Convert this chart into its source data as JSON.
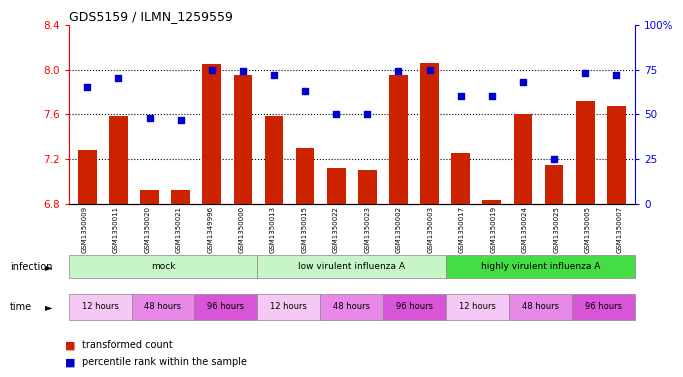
{
  "title": "GDS5159 / ILMN_1259559",
  "samples": [
    "GSM1350009",
    "GSM1350011",
    "GSM1350020",
    "GSM1350021",
    "GSM1349996",
    "GSM1350000",
    "GSM1350013",
    "GSM1350015",
    "GSM1350022",
    "GSM1350023",
    "GSM1350002",
    "GSM1350003",
    "GSM1350017",
    "GSM1350019",
    "GSM1350024",
    "GSM1350025",
    "GSM1350005",
    "GSM1350007"
  ],
  "red_values": [
    7.28,
    7.58,
    6.92,
    6.92,
    8.05,
    7.95,
    7.58,
    7.3,
    7.12,
    7.1,
    7.95,
    8.06,
    7.25,
    6.83,
    7.6,
    7.15,
    7.72,
    7.67
  ],
  "blue_values": [
    0.65,
    0.7,
    0.48,
    0.47,
    0.75,
    0.74,
    0.72,
    0.63,
    0.5,
    0.5,
    0.74,
    0.75,
    0.6,
    0.6,
    0.68,
    0.25,
    0.73,
    0.72
  ],
  "ylim_left": [
    6.8,
    8.4
  ],
  "ylim_right": [
    0.0,
    1.0
  ],
  "yticks_left": [
    6.8,
    7.2,
    7.6,
    8.0,
    8.4
  ],
  "yticks_right": [
    0.0,
    0.25,
    0.5,
    0.75,
    1.0
  ],
  "ytick_labels_right": [
    "0",
    "25",
    "50",
    "75",
    "100%"
  ],
  "infection_groups": [
    {
      "label": "mock",
      "start": 0,
      "end": 6,
      "color": "#c8f5c8"
    },
    {
      "label": "low virulent influenza A",
      "start": 6,
      "end": 12,
      "color": "#c8f5c8"
    },
    {
      "label": "highly virulent influenza A",
      "start": 12,
      "end": 18,
      "color": "#44dd44"
    }
  ],
  "time_colors": [
    "#f5c8f5",
    "#e888e8",
    "#d855d8"
  ],
  "time_labels": [
    "12 hours",
    "48 hours",
    "96 hours"
  ],
  "bar_color": "#cc2200",
  "dot_color": "#0000cc",
  "background_color": "#ffffff"
}
